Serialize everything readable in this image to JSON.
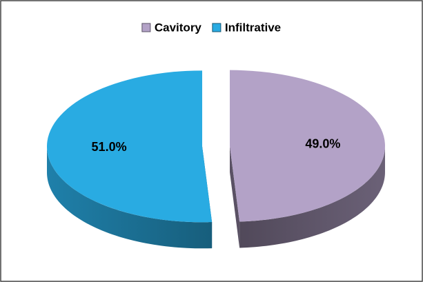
{
  "chart_data": {
    "type": "pie",
    "categories": [
      "Cavitory",
      "Infiltrative"
    ],
    "values": [
      49.0,
      51.0
    ],
    "value_labels": [
      "49.0%",
      "51.0%"
    ],
    "colors": [
      "#b3a2c7",
      "#29abe2"
    ],
    "legend": "top"
  }
}
